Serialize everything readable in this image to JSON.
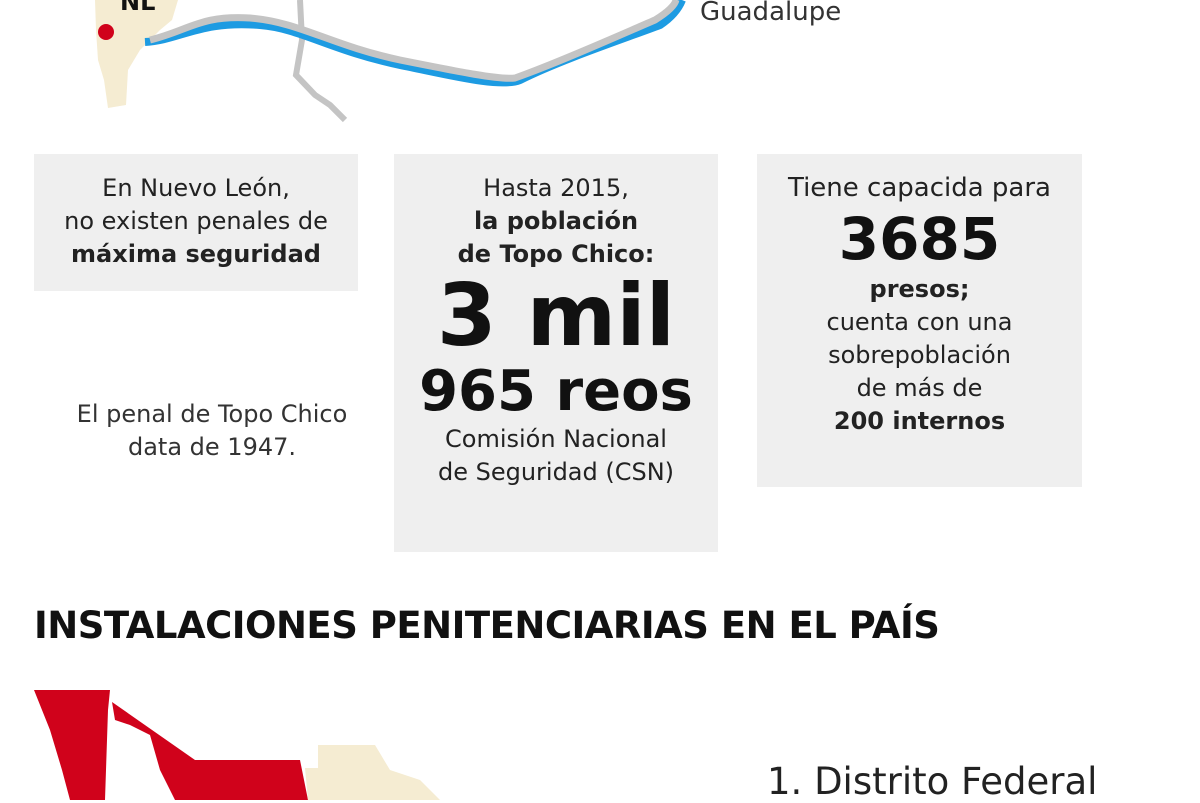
{
  "map_top": {
    "state_label": "NL",
    "place_label": "Guadalupe",
    "colors": {
      "state": "#f5ecd2",
      "marker": "#d0021b",
      "river": "#1d9be2",
      "road": "#c4c4c4"
    }
  },
  "facts": {
    "box1": {
      "line1": "En Nuevo León,",
      "line2": "no existen penales de",
      "line3_bold": "máxima seguridad"
    },
    "box2": {
      "line1": "Hasta 2015,",
      "line2_bold": "la población",
      "line3_bold": "de Topo Chico:",
      "big1": "3 mil",
      "big2": "965 reos",
      "source1": "Comisión Nacional",
      "source2": "de Seguridad (CSN)"
    },
    "box3": {
      "line1": "Tiene capacida para",
      "big": "3685",
      "line2_bold": "presos;",
      "line3": "cuenta con una",
      "line4": "sobrepoblación",
      "line5": "de más de",
      "line6_bold": "200 internos"
    },
    "note": {
      "line1": "El penal de Topo Chico",
      "line2": "data de 1947."
    }
  },
  "section": {
    "title": "INSTALACIONES PENITENCIARIAS EN EL PAÍS",
    "list_first": "1. Distrito Federal"
  },
  "map_bottom": {
    "colors": {
      "highlight": "#d0021b",
      "other": "#f5ecd2"
    }
  }
}
